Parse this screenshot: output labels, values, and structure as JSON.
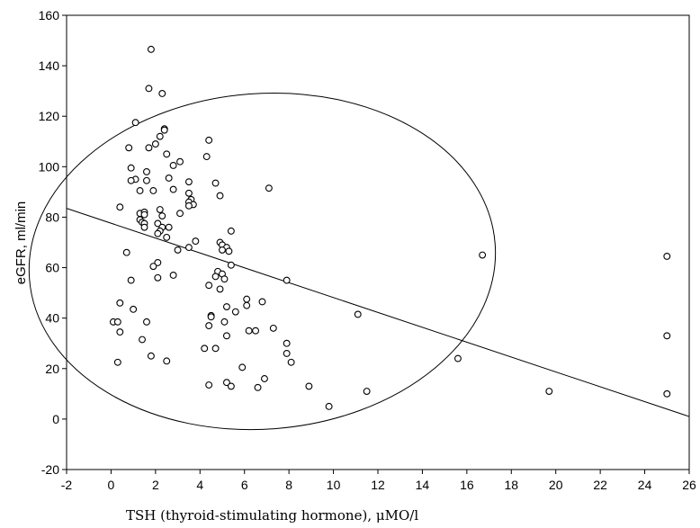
{
  "chart_data": {
    "type": "scatter",
    "title": "",
    "xlabel": "TSH (thyroid-stimulating hormone), μMO/l",
    "ylabel": "eGFR, ml/min",
    "xlim": [
      -2,
      26
    ],
    "ylim": [
      -20,
      160
    ],
    "x_ticks": [
      -2,
      0,
      2,
      4,
      6,
      8,
      10,
      12,
      14,
      16,
      18,
      20,
      22,
      24,
      26
    ],
    "y_ticks": [
      -20,
      0,
      20,
      40,
      60,
      80,
      100,
      120,
      140,
      160
    ],
    "grid": false,
    "marker": "open-circle",
    "colors": {
      "stroke": "#000000",
      "background": "#ffffff"
    },
    "points": [
      [
        1.8,
        146.5
      ],
      [
        1.7,
        131
      ],
      [
        2.3,
        129
      ],
      [
        1.1,
        117.5
      ],
      [
        2.4,
        115
      ],
      [
        2.4,
        114.5
      ],
      [
        2.2,
        112
      ],
      [
        4.4,
        110.5
      ],
      [
        2.0,
        109
      ],
      [
        0.8,
        107.5
      ],
      [
        1.7,
        107.5
      ],
      [
        2.5,
        105
      ],
      [
        4.3,
        104
      ],
      [
        3.1,
        102
      ],
      [
        2.8,
        100.5
      ],
      [
        0.9,
        99.5
      ],
      [
        1.6,
        98
      ],
      [
        1.1,
        95
      ],
      [
        0.9,
        94.5
      ],
      [
        1.6,
        94.5
      ],
      [
        3.5,
        94
      ],
      [
        4.7,
        93.5
      ],
      [
        2.6,
        95.5
      ],
      [
        7.1,
        91.5
      ],
      [
        2.8,
        91
      ],
      [
        1.9,
        90.5
      ],
      [
        1.3,
        90.5
      ],
      [
        3.5,
        89.5
      ],
      [
        4.9,
        88.5
      ],
      [
        3.6,
        87
      ],
      [
        3.5,
        86
      ],
      [
        3.7,
        85
      ],
      [
        3.5,
        84.5
      ],
      [
        0.4,
        84
      ],
      [
        2.2,
        83
      ],
      [
        1.3,
        81.5
      ],
      [
        3.1,
        81.5
      ],
      [
        1.5,
        82
      ],
      [
        1.5,
        81
      ],
      [
        2.3,
        80.5
      ],
      [
        1.3,
        79
      ],
      [
        1.4,
        78
      ],
      [
        2.1,
        77.5
      ],
      [
        1.5,
        77.5
      ],
      [
        2.3,
        76
      ],
      [
        1.5,
        76
      ],
      [
        2.6,
        76
      ],
      [
        2.2,
        74.5
      ],
      [
        5.4,
        74.5
      ],
      [
        2.1,
        73.5
      ],
      [
        2.5,
        72
      ],
      [
        3.8,
        70.5
      ],
      [
        4.9,
        70
      ],
      [
        5.0,
        69
      ],
      [
        5.2,
        68
      ],
      [
        3.5,
        68
      ],
      [
        5.0,
        67
      ],
      [
        5.3,
        66.5
      ],
      [
        3.0,
        67
      ],
      [
        0.7,
        66
      ],
      [
        16.7,
        65
      ],
      [
        25.0,
        64.5
      ],
      [
        2.1,
        62
      ],
      [
        5.4,
        61
      ],
      [
        1.9,
        60.5
      ],
      [
        4.8,
        58.5
      ],
      [
        5.0,
        57.5
      ],
      [
        2.8,
        57
      ],
      [
        4.7,
        56.5
      ],
      [
        2.1,
        56
      ],
      [
        5.1,
        55.5
      ],
      [
        7.9,
        55
      ],
      [
        0.9,
        55
      ],
      [
        4.4,
        53
      ],
      [
        4.9,
        51.5
      ],
      [
        6.1,
        47.5
      ],
      [
        6.8,
        46.5
      ],
      [
        6.1,
        45
      ],
      [
        0.4,
        46
      ],
      [
        5.2,
        44.5
      ],
      [
        1.0,
        43.5
      ],
      [
        5.6,
        42.5
      ],
      [
        4.5,
        41
      ],
      [
        4.5,
        40.5
      ],
      [
        11.1,
        41.5
      ],
      [
        0.1,
        38.5
      ],
      [
        1.6,
        38.5
      ],
      [
        0.3,
        38.5
      ],
      [
        5.1,
        38.5
      ],
      [
        4.4,
        37
      ],
      [
        7.3,
        36
      ],
      [
        6.2,
        35
      ],
      [
        6.5,
        35
      ],
      [
        0.4,
        34.5
      ],
      [
        5.2,
        33
      ],
      [
        25.0,
        33
      ],
      [
        1.4,
        31.5
      ],
      [
        7.9,
        30
      ],
      [
        4.2,
        28
      ],
      [
        4.7,
        28
      ],
      [
        7.9,
        26
      ],
      [
        1.8,
        25
      ],
      [
        15.6,
        24
      ],
      [
        2.5,
        23
      ],
      [
        0.3,
        22.5
      ],
      [
        8.1,
        22.5
      ],
      [
        5.9,
        20.5
      ],
      [
        6.9,
        16
      ],
      [
        5.2,
        14.5
      ],
      [
        4.4,
        13.5
      ],
      [
        5.4,
        13
      ],
      [
        6.6,
        12.5
      ],
      [
        8.9,
        13
      ],
      [
        11.5,
        11
      ],
      [
        19.7,
        11
      ],
      [
        25.0,
        10
      ],
      [
        9.8,
        5
      ]
    ],
    "regression_line": {
      "x": [
        -2,
        26
      ],
      "y": [
        83.5,
        1
      ]
    },
    "confidence_ellipse": {
      "center": [
        6.8,
        62.5
      ],
      "rx": 10.5,
      "ry": 66.5,
      "angle_deg": -4.3
    }
  }
}
